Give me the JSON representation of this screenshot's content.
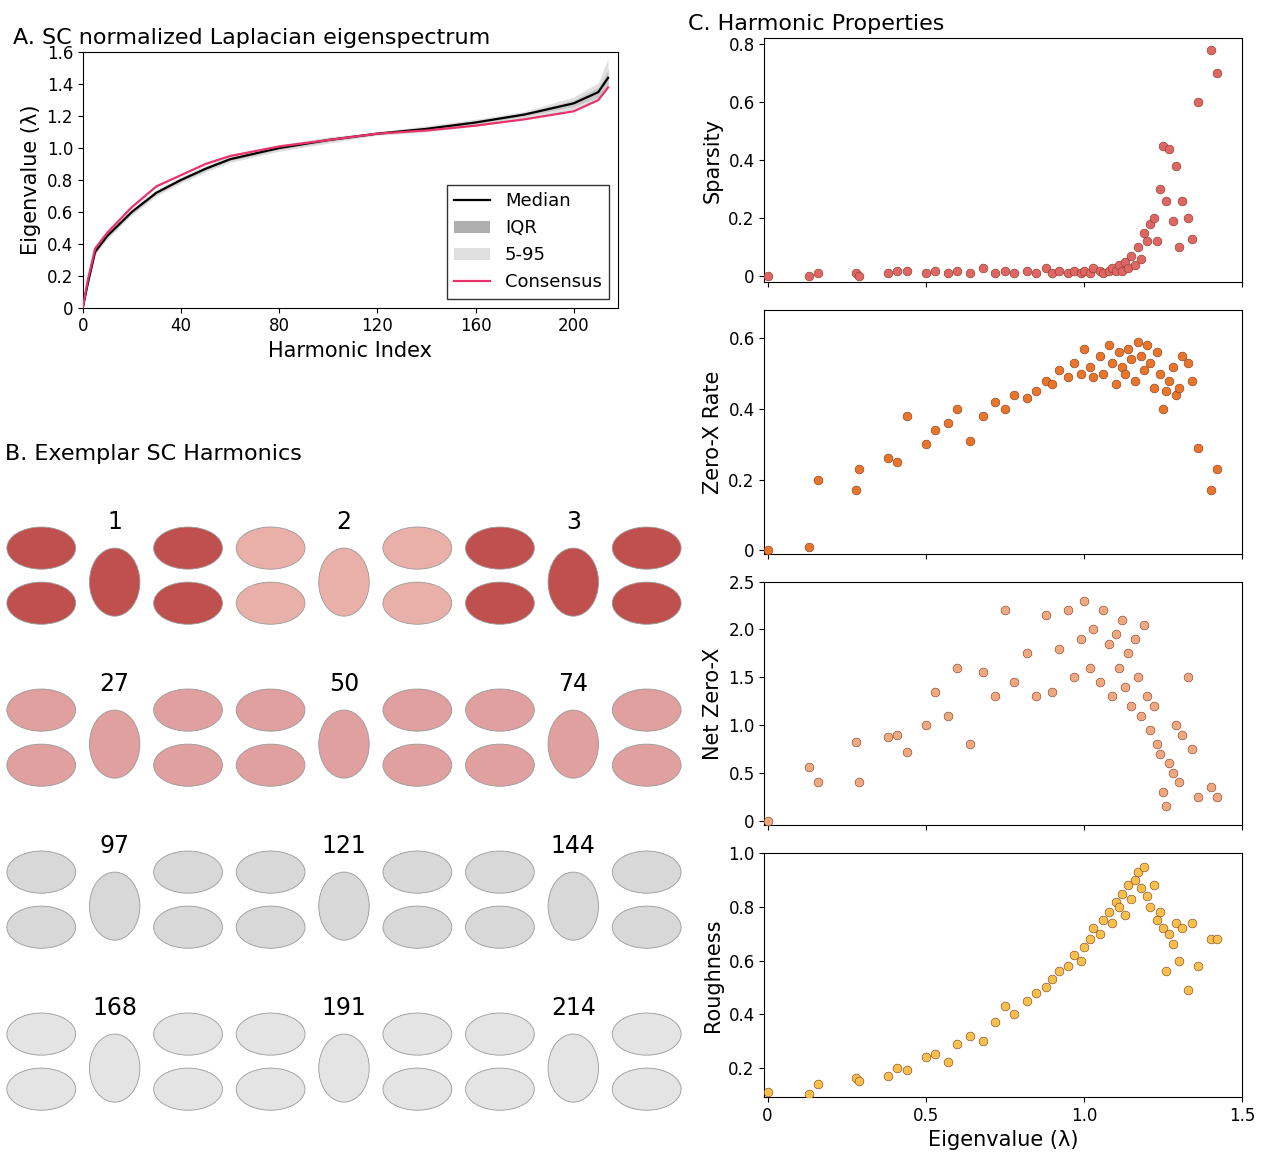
{
  "chart_data": [
    {
      "type": "line",
      "title": "A. SC normalized Laplacian eigenspectrum",
      "x_label": "Harmonic Index",
      "y_label": "Eigenvalue (λ)",
      "x": [
        0,
        2,
        5,
        10,
        20,
        30,
        40,
        50,
        60,
        80,
        100,
        120,
        140,
        160,
        180,
        200,
        210,
        214
      ],
      "xlim": [
        0,
        218
      ],
      "xticks": [
        0,
        40,
        80,
        120,
        160,
        200
      ],
      "ylim": [
        0,
        1.6
      ],
      "yticks": [
        0,
        0.2,
        0.4,
        0.6,
        0.8,
        {
          "value": 1.0,
          "label": "1.0"
        },
        1.2,
        1.4,
        1.6
      ],
      "legend": "lower right",
      "series": [
        {
          "name": "Median",
          "type": "line",
          "color": "#000000",
          "values": [
            0,
            0.15,
            0.35,
            0.45,
            0.6,
            0.72,
            0.8,
            0.87,
            0.93,
            1.0,
            1.05,
            1.09,
            1.12,
            1.16,
            1.21,
            1.28,
            1.35,
            1.44
          ]
        },
        {
          "name": "IQR",
          "type": "band",
          "color": "#8c8c8c",
          "lower": [
            0,
            0.14,
            0.34,
            0.44,
            0.59,
            0.71,
            0.79,
            0.86,
            0.92,
            0.99,
            1.04,
            1.085,
            1.11,
            1.15,
            1.2,
            1.26,
            1.32,
            1.4
          ],
          "upper": [
            0,
            0.16,
            0.36,
            0.46,
            0.61,
            0.73,
            0.81,
            0.88,
            0.94,
            1.01,
            1.06,
            1.095,
            1.13,
            1.17,
            1.22,
            1.3,
            1.38,
            1.49
          ]
        },
        {
          "name": "5-95",
          "type": "band",
          "color": "#d3d3d3",
          "lower": [
            0,
            0.13,
            0.33,
            0.43,
            0.58,
            0.7,
            0.78,
            0.85,
            0.91,
            0.98,
            1.03,
            1.08,
            1.1,
            1.14,
            1.19,
            1.24,
            1.3,
            1.37
          ],
          "upper": [
            0,
            0.17,
            0.37,
            0.47,
            0.62,
            0.74,
            0.82,
            0.89,
            0.95,
            1.02,
            1.07,
            1.1,
            1.14,
            1.18,
            1.23,
            1.32,
            1.41,
            1.56
          ]
        },
        {
          "name": "Consensus",
          "type": "line",
          "color": "#e8336b",
          "values": [
            0,
            0.17,
            0.37,
            0.47,
            0.63,
            0.76,
            0.83,
            0.9,
            0.95,
            1.01,
            1.05,
            1.09,
            1.11,
            1.14,
            1.18,
            1.23,
            1.3,
            1.38
          ]
        }
      ]
    },
    {
      "type": "scatter",
      "title": "C. Harmonic Properties",
      "y_label": "Sparsity",
      "color": "#e06666",
      "tick_labels": "y",
      "x": [
        0,
        0.13,
        0.16,
        0.28,
        0.29,
        0.38,
        0.41,
        0.44,
        0.5,
        0.53,
        0.57,
        0.6,
        0.64,
        0.68,
        0.72,
        0.75,
        0.78,
        0.82,
        0.85,
        0.88,
        0.9,
        0.92,
        0.95,
        0.97,
        0.99,
        1.0,
        1.02,
        1.03,
        1.05,
        1.06,
        1.08,
        1.09,
        1.1,
        1.11,
        1.12,
        1.13,
        1.14,
        1.15,
        1.16,
        1.17,
        1.18,
        1.19,
        1.2,
        1.21,
        1.22,
        1.23,
        1.24,
        1.25,
        1.26,
        1.27,
        1.28,
        1.29,
        1.3,
        1.31,
        1.33,
        1.34,
        1.36,
        1.4,
        1.42
      ],
      "values": [
        0,
        0,
        0.01,
        0.01,
        0,
        0.01,
        0.02,
        0.02,
        0.01,
        0.02,
        0.01,
        0.02,
        0.01,
        0.03,
        0.01,
        0.02,
        0.01,
        0.02,
        0.01,
        0.03,
        0.01,
        0.02,
        0.01,
        0.02,
        0.01,
        0.02,
        0.01,
        0.03,
        0.02,
        0.01,
        0.02,
        0.03,
        0.02,
        0.04,
        0.02,
        0.05,
        0.03,
        0.07,
        0.04,
        0.1,
        0.06,
        0.15,
        0.12,
        0.18,
        0.2,
        0.12,
        0.3,
        0.45,
        0.26,
        0.44,
        0.19,
        0.38,
        0.1,
        0.26,
        0.2,
        0.13,
        0.6,
        0.78,
        0.7
      ],
      "xlim": [
        -0.01,
        1.5
      ],
      "xticks": [
        0,
        0.5,
        {
          "value": 1.0,
          "label": "1.0"
        },
        1.5
      ],
      "ylim": [
        -0.02,
        0.82
      ],
      "yticks": [
        0,
        0.2,
        0.4,
        0.6,
        0.8
      ]
    },
    {
      "type": "scatter",
      "y_label": "Zero-X Rate",
      "color": "#e8752a",
      "tick_labels": "y",
      "x": [
        0,
        0.13,
        0.16,
        0.28,
        0.29,
        0.38,
        0.41,
        0.44,
        0.5,
        0.53,
        0.57,
        0.6,
        0.64,
        0.68,
        0.72,
        0.75,
        0.78,
        0.82,
        0.85,
        0.88,
        0.9,
        0.92,
        0.95,
        0.97,
        0.99,
        1.0,
        1.02,
        1.03,
        1.05,
        1.06,
        1.08,
        1.09,
        1.1,
        1.11,
        1.12,
        1.13,
        1.14,
        1.15,
        1.16,
        1.17,
        1.18,
        1.19,
        1.2,
        1.21,
        1.22,
        1.23,
        1.24,
        1.25,
        1.26,
        1.27,
        1.28,
        1.29,
        1.3,
        1.31,
        1.33,
        1.34,
        1.36,
        1.4,
        1.42
      ],
      "values": [
        0,
        0.01,
        0.2,
        0.17,
        0.23,
        0.26,
        0.25,
        0.38,
        0.3,
        0.34,
        0.36,
        0.4,
        0.31,
        0.38,
        0.42,
        0.4,
        0.44,
        0.43,
        0.45,
        0.48,
        0.47,
        0.51,
        0.49,
        0.53,
        0.5,
        0.57,
        0.52,
        0.49,
        0.55,
        0.5,
        0.58,
        0.53,
        0.47,
        0.56,
        0.52,
        0.5,
        0.57,
        0.54,
        0.48,
        0.59,
        0.55,
        0.51,
        0.58,
        0.53,
        0.46,
        0.56,
        0.5,
        0.4,
        0.45,
        0.48,
        0.52,
        0.44,
        0.46,
        0.55,
        0.53,
        0.48,
        0.29,
        0.17,
        0.23
      ],
      "xlim": [
        -0.01,
        1.5
      ],
      "xticks": [
        0,
        0.5,
        {
          "value": 1.0,
          "label": "1.0"
        },
        1.5
      ],
      "ylim": [
        -0.01,
        0.68
      ],
      "yticks": [
        0,
        0.2,
        0.4,
        0.6
      ]
    },
    {
      "type": "scatter",
      "y_label": "Net Zero-X",
      "color": "#f0a880",
      "tick_labels": "y",
      "x": [
        0,
        0.13,
        0.16,
        0.28,
        0.29,
        0.38,
        0.41,
        0.44,
        0.5,
        0.53,
        0.57,
        0.6,
        0.64,
        0.68,
        0.72,
        0.75,
        0.78,
        0.82,
        0.85,
        0.88,
        0.9,
        0.92,
        0.95,
        0.97,
        0.99,
        1.0,
        1.02,
        1.03,
        1.05,
        1.06,
        1.08,
        1.09,
        1.1,
        1.11,
        1.12,
        1.13,
        1.14,
        1.15,
        1.16,
        1.17,
        1.18,
        1.19,
        1.2,
        1.21,
        1.22,
        1.23,
        1.24,
        1.25,
        1.26,
        1.27,
        1.28,
        1.29,
        1.3,
        1.31,
        1.33,
        1.34,
        1.36,
        1.4,
        1.42
      ],
      "values": [
        0,
        0.56,
        0.4,
        0.82,
        0.4,
        0.88,
        0.9,
        0.72,
        1.0,
        1.35,
        1.1,
        1.6,
        0.8,
        1.55,
        1.3,
        2.2,
        1.45,
        1.75,
        1.3,
        2.15,
        1.35,
        1.8,
        2.2,
        1.5,
        1.9,
        2.3,
        1.6,
        2.0,
        1.45,
        2.2,
        1.85,
        1.3,
        1.95,
        1.6,
        2.1,
        1.4,
        1.75,
        1.2,
        1.9,
        1.5,
        1.1,
        2.05,
        1.3,
        0.95,
        1.2,
        0.8,
        0.7,
        0.3,
        0.15,
        0.6,
        0.5,
        1.0,
        0.4,
        0.9,
        1.5,
        0.75,
        0.25,
        0.35,
        0.25
      ],
      "xlim": [
        -0.01,
        1.5
      ],
      "xticks": [
        0,
        0.5,
        {
          "value": 1.0,
          "label": "1.0"
        },
        1.5
      ],
      "ylim": [
        -0.05,
        2.5
      ],
      "yticks": [
        0,
        0.5,
        {
          "value": 1.0,
          "label": "1.0"
        },
        1.5,
        {
          "value": 2.0,
          "label": "2.0"
        },
        2.5
      ]
    },
    {
      "type": "scatter",
      "y_label": "Roughness",
      "x_label": "Eigenvalue (λ)",
      "color": "#f7c04a",
      "x": [
        0,
        0.13,
        0.16,
        0.28,
        0.29,
        0.38,
        0.41,
        0.44,
        0.5,
        0.53,
        0.57,
        0.6,
        0.64,
        0.68,
        0.72,
        0.75,
        0.78,
        0.82,
        0.85,
        0.88,
        0.9,
        0.92,
        0.95,
        0.97,
        0.99,
        1.0,
        1.02,
        1.03,
        1.05,
        1.06,
        1.08,
        1.09,
        1.1,
        1.11,
        1.12,
        1.13,
        1.14,
        1.15,
        1.16,
        1.17,
        1.18,
        1.19,
        1.2,
        1.21,
        1.22,
        1.23,
        1.24,
        1.25,
        1.26,
        1.27,
        1.28,
        1.29,
        1.3,
        1.31,
        1.33,
        1.34,
        1.36,
        1.4,
        1.42
      ],
      "values": [
        0.11,
        0.1,
        0.14,
        0.16,
        0.15,
        0.17,
        0.2,
        0.19,
        0.24,
        0.25,
        0.22,
        0.29,
        0.32,
        0.3,
        0.37,
        0.43,
        0.4,
        0.45,
        0.48,
        0.5,
        0.53,
        0.56,
        0.58,
        0.62,
        0.6,
        0.65,
        0.68,
        0.72,
        0.7,
        0.75,
        0.78,
        0.74,
        0.82,
        0.8,
        0.85,
        0.77,
        0.88,
        0.83,
        0.9,
        0.93,
        0.87,
        0.95,
        0.84,
        0.8,
        0.88,
        0.75,
        0.78,
        0.72,
        0.56,
        0.7,
        0.66,
        0.74,
        0.6,
        0.72,
        0.49,
        0.74,
        0.58,
        0.68,
        0.68
      ],
      "xlim": [
        -0.01,
        1.5
      ],
      "xticks": [
        0,
        0.5,
        {
          "value": 1.0,
          "label": "1.0"
        },
        1.5
      ],
      "ylim": [
        0.09,
        1.0
      ],
      "yticks": [
        0.2,
        0.4,
        0.6,
        0.8,
        {
          "value": 1.0,
          "label": "1.0"
        }
      ]
    }
  ],
  "diagram": {
    "title": "B. Exemplar SC Harmonics",
    "harmonics": [
      1,
      2,
      3,
      27,
      50,
      74,
      97,
      121,
      144,
      168,
      191,
      214
    ]
  }
}
